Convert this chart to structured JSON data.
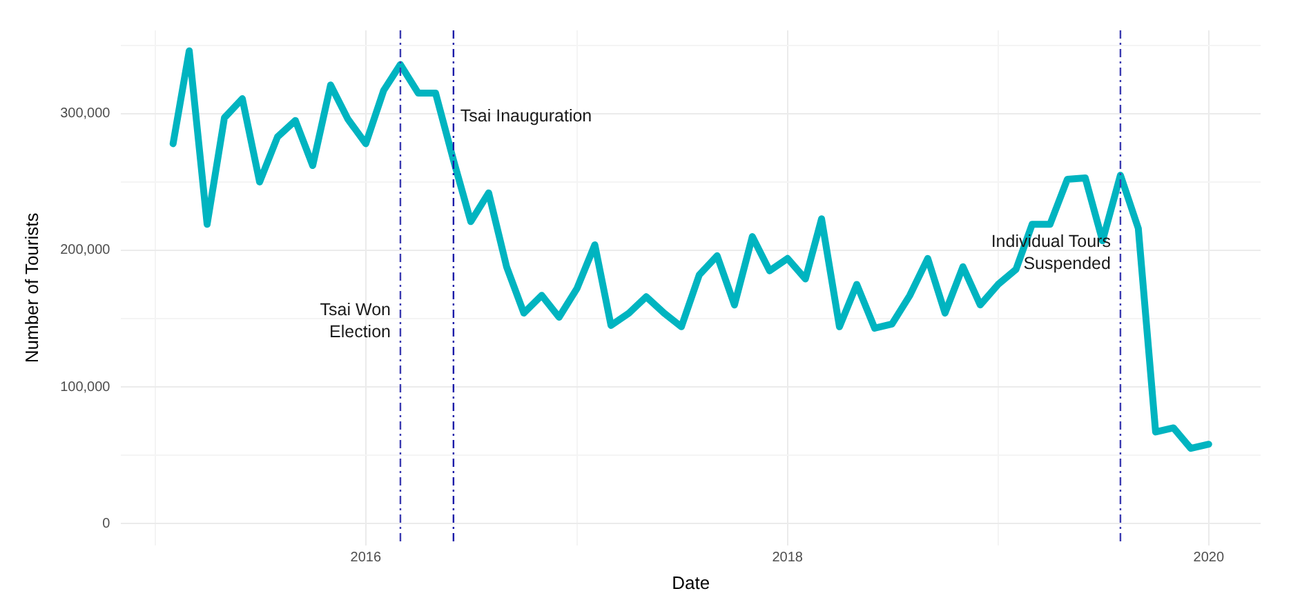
{
  "chart_data": {
    "type": "line",
    "xlabel": "Date",
    "ylabel": "Number of Tourists",
    "x": [
      "2015-02",
      "2015-03",
      "2015-04",
      "2015-05",
      "2015-06",
      "2015-07",
      "2015-08",
      "2015-09",
      "2015-10",
      "2015-11",
      "2015-12",
      "2016-01",
      "2016-02",
      "2016-03",
      "2016-04",
      "2016-05",
      "2016-06",
      "2016-07",
      "2016-08",
      "2016-09",
      "2016-10",
      "2016-11",
      "2016-12",
      "2017-01",
      "2017-02",
      "2017-03",
      "2017-04",
      "2017-05",
      "2017-06",
      "2017-07",
      "2017-08",
      "2017-09",
      "2017-10",
      "2017-11",
      "2017-12",
      "2018-01",
      "2018-02",
      "2018-03",
      "2018-04",
      "2018-05",
      "2018-06",
      "2018-07",
      "2018-08",
      "2018-09",
      "2018-10",
      "2018-11",
      "2018-12",
      "2019-01",
      "2019-02",
      "2019-03",
      "2019-04",
      "2019-05",
      "2019-06",
      "2019-07",
      "2019-08",
      "2019-09",
      "2019-10",
      "2019-11",
      "2019-12",
      "2020-01"
    ],
    "series": [
      {
        "color": "#00b4c0",
        "values": [
          278000,
          346000,
          219000,
          297000,
          311000,
          250000,
          283000,
          295000,
          262000,
          321000,
          296000,
          278000,
          317000,
          336000,
          315000,
          315000,
          266000,
          221000,
          242000,
          188000,
          154000,
          167000,
          151000,
          172000,
          204000,
          145000,
          154000,
          166000,
          154000,
          144000,
          182000,
          196000,
          160000,
          210000,
          185000,
          194000,
          179000,
          223000,
          144000,
          175000,
          143000,
          146000,
          167000,
          194000,
          154000,
          188000,
          160000,
          175000,
          186000,
          219000,
          219000,
          252000,
          253000,
          207000,
          255000,
          216000,
          67000,
          70000,
          55000,
          58000
        ]
      }
    ],
    "xlim": [
      "2014-11-03",
      "2020-03-31"
    ],
    "xticks": [
      {
        "value": "2015",
        "label": null
      },
      {
        "value": "2016",
        "label": "2016"
      },
      {
        "value": "2017",
        "label": null
      },
      {
        "value": "2018",
        "label": "2018"
      },
      {
        "value": "2019",
        "label": null
      },
      {
        "value": "2020",
        "label": "2020"
      }
    ],
    "ylim": [
      -16000,
      361000
    ],
    "yticks": [
      {
        "value": 0,
        "label": "0"
      },
      {
        "value": 50000,
        "label": null
      },
      {
        "value": 100000,
        "label": "100,000"
      },
      {
        "value": 150000,
        "label": null
      },
      {
        "value": 200000,
        "label": "200,000"
      },
      {
        "value": 250000,
        "label": null
      },
      {
        "value": 300000,
        "label": "300,000"
      },
      {
        "value": 350000,
        "label": null
      }
    ],
    "grid": true,
    "legend": false,
    "marker": "none",
    "line_style": "solid",
    "ref_lines": [
      {
        "axis": "x",
        "value": "2016-03",
        "color": "#3a3ab0"
      },
      {
        "axis": "x",
        "value": "2016-06",
        "color": "#1a1aa8"
      },
      {
        "axis": "x",
        "value": "2019-08",
        "color": "#3a3ab0"
      }
    ],
    "annotations": [
      {
        "text": "Tsai Won\nElection",
        "x": "2016-03",
        "y": 148000
      },
      {
        "text": "Tsai Inauguration",
        "x": "2016-06",
        "y": 298000
      },
      {
        "text": "Individual Tours\nSuspended",
        "x": "2019-08",
        "y": 198000
      }
    ]
  }
}
